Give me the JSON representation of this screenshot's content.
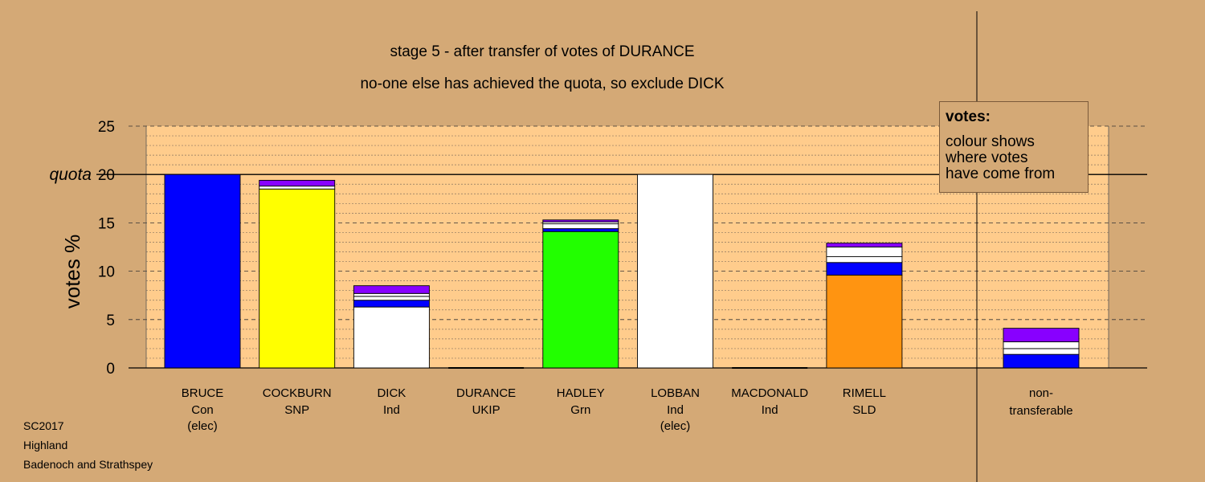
{
  "title_line1": "stage 5 - after transfer of votes of DURANCE",
  "title_line2": "no-one else has achieved the quota, so exclude DICK",
  "footer": [
    "SC2017",
    "Highland",
    "Badenoch and Strathspey"
  ],
  "legend": {
    "title": "votes:",
    "lines": [
      "colour shows",
      "where votes",
      "have come from"
    ]
  },
  "chart_data": {
    "type": "bar",
    "stacked": true,
    "ylabel": "votes %",
    "ylim": [
      0,
      25
    ],
    "yticks": [
      0,
      5,
      10,
      15,
      20,
      25
    ],
    "quota": 20,
    "quota_label": "quota",
    "grid": true,
    "categories": [
      {
        "name": "BRUCE",
        "party": "Con",
        "note": "(elec)",
        "segments": [
          {
            "color": "#0000FF",
            "value": 20.0
          }
        ]
      },
      {
        "name": "COCKBURN",
        "party": "SNP",
        "note": "",
        "segments": [
          {
            "color": "#FFFF00",
            "value": 18.5
          },
          {
            "color": "#FFFFFF",
            "value": 0.3
          },
          {
            "color": "#8800FF",
            "value": 0.6
          }
        ]
      },
      {
        "name": "DICK",
        "party": "Ind",
        "note": "",
        "segments": [
          {
            "color": "#FFFFFF",
            "value": 6.3
          },
          {
            "color": "#0000FF",
            "value": 0.7
          },
          {
            "color": "#FFFFFF",
            "value": 0.4
          },
          {
            "color": "#FFFFFF",
            "value": 0.3
          },
          {
            "color": "#8800FF",
            "value": 0.8
          }
        ]
      },
      {
        "name": "DURANCE",
        "party": "UKIP",
        "note": "",
        "segments": []
      },
      {
        "name": "HADLEY",
        "party": "Grn",
        "note": "",
        "segments": [
          {
            "color": "#22FF00",
            "value": 14.1
          },
          {
            "color": "#0000FF",
            "value": 0.3
          },
          {
            "color": "#FFFFFF",
            "value": 0.5
          },
          {
            "color": "#FFFFFF",
            "value": 0.2
          },
          {
            "color": "#8800FF",
            "value": 0.2
          }
        ]
      },
      {
        "name": "LOBBAN",
        "party": "Ind",
        "note": "(elec)",
        "segments": [
          {
            "color": "#FFFFFF",
            "value": 20.0
          }
        ]
      },
      {
        "name": "MACDONALD",
        "party": "Ind",
        "note": "",
        "segments": []
      },
      {
        "name": "RIMELL",
        "party": "SLD",
        "note": "",
        "segments": [
          {
            "color": "#FF9411",
            "value": 9.6
          },
          {
            "color": "#0000FF",
            "value": 1.3
          },
          {
            "color": "#FFFFFF",
            "value": 0.6
          },
          {
            "color": "#FFFFFF",
            "value": 1.0
          },
          {
            "color": "#8800FF",
            "value": 0.4
          }
        ]
      }
    ],
    "nontransferable": {
      "label_line1": "non-",
      "label_line2": "transferable",
      "segments": [
        {
          "color": "#0000FF",
          "value": 1.4
        },
        {
          "color": "#FFFFFF",
          "value": 0.6
        },
        {
          "color": "#FFFFFF",
          "value": 0.7
        },
        {
          "color": "#8800FF",
          "value": 1.4
        }
      ]
    }
  }
}
